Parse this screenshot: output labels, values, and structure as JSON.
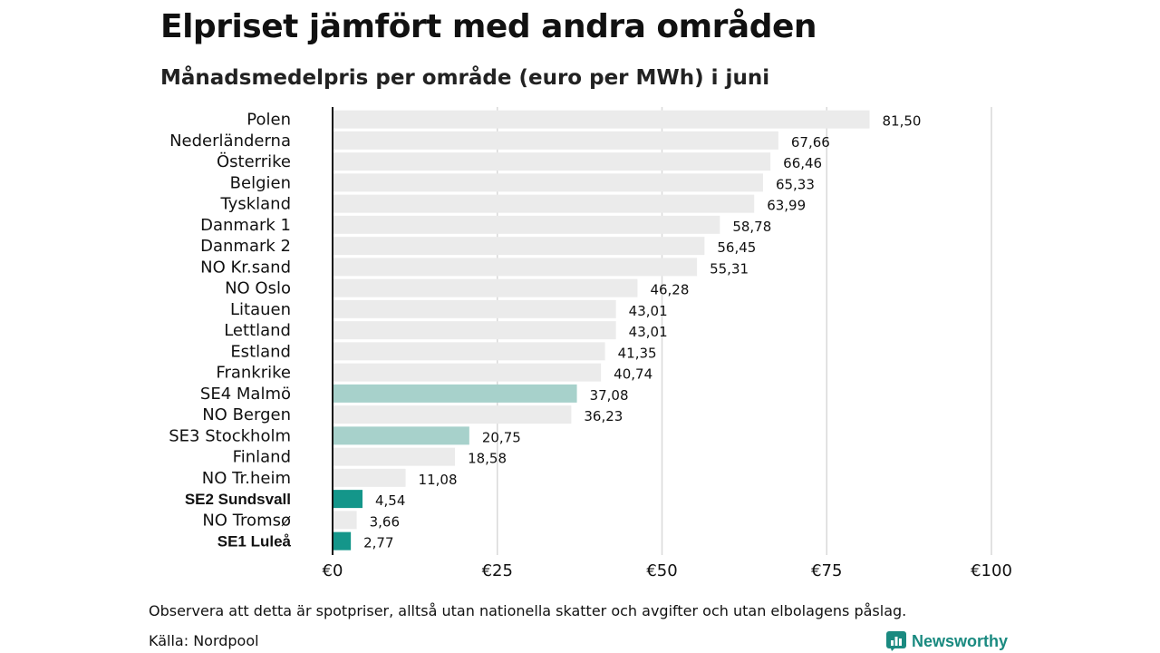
{
  "title": "Elpriset jämfört med andra områden",
  "subtitle": "Månadsmedelpris per område (euro per MWh) i juni",
  "note": "Observera att detta är spotpriser, alltså utan nationella skatter och avgifter och utan elbolagens påslag.",
  "source": "Källa: Nordpool",
  "brand": {
    "name": "Newsworthy",
    "icon": "newsworthy-logo-icon"
  },
  "colors": {
    "default_bar": "#ebebeb",
    "light_highlight": "#a7d1cb",
    "strong_highlight": "#14968a",
    "axis": "#111111",
    "grid": "#d9d9d9"
  },
  "chart_data": {
    "type": "bar",
    "orientation": "horizontal",
    "xlim": [
      0,
      100
    ],
    "xticks": [
      {
        "value": 0,
        "label": "€0"
      },
      {
        "value": 25,
        "label": "€25"
      },
      {
        "value": 50,
        "label": "€50"
      },
      {
        "value": 75,
        "label": "€75"
      },
      {
        "value": 100,
        "label": "€100"
      }
    ],
    "grid": true,
    "categories": [
      {
        "label": "Polen",
        "value": 81.5,
        "value_label": "81,50",
        "highlight": "none",
        "bold": false
      },
      {
        "label": "Nederländerna",
        "value": 67.66,
        "value_label": "67,66",
        "highlight": "none",
        "bold": false
      },
      {
        "label": "Österrike",
        "value": 66.46,
        "value_label": "66,46",
        "highlight": "none",
        "bold": false
      },
      {
        "label": "Belgien",
        "value": 65.33,
        "value_label": "65,33",
        "highlight": "none",
        "bold": false
      },
      {
        "label": "Tyskland",
        "value": 63.99,
        "value_label": "63,99",
        "highlight": "none",
        "bold": false
      },
      {
        "label": "Danmark  1",
        "value": 58.78,
        "value_label": "58,78",
        "highlight": "none",
        "bold": false
      },
      {
        "label": "Danmark  2",
        "value": 56.45,
        "value_label": "56,45",
        "highlight": "none",
        "bold": false
      },
      {
        "label": "NO Kr.sand",
        "value": 55.31,
        "value_label": "55,31",
        "highlight": "none",
        "bold": false
      },
      {
        "label": "NO Oslo",
        "value": 46.28,
        "value_label": "46,28",
        "highlight": "none",
        "bold": false
      },
      {
        "label": "Litauen",
        "value": 43.01,
        "value_label": "43,01",
        "highlight": "none",
        "bold": false
      },
      {
        "label": "Lettland",
        "value": 43.01,
        "value_label": "43,01",
        "highlight": "none",
        "bold": false
      },
      {
        "label": "Estland",
        "value": 41.35,
        "value_label": "41,35",
        "highlight": "none",
        "bold": false
      },
      {
        "label": "Frankrike",
        "value": 40.74,
        "value_label": "40,74",
        "highlight": "none",
        "bold": false
      },
      {
        "label": "SE4  Malmö",
        "value": 37.08,
        "value_label": "37,08",
        "highlight": "light",
        "bold": false
      },
      {
        "label": "NO Bergen",
        "value": 36.23,
        "value_label": "36,23",
        "highlight": "none",
        "bold": false
      },
      {
        "label": "SE3  Stockholm",
        "value": 20.75,
        "value_label": "20,75",
        "highlight": "light",
        "bold": false
      },
      {
        "label": "Finland",
        "value": 18.58,
        "value_label": "18,58",
        "highlight": "none",
        "bold": false
      },
      {
        "label": "NO Tr.heim",
        "value": 11.08,
        "value_label": "11,08",
        "highlight": "none",
        "bold": false
      },
      {
        "label": "SE2 Sundsvall",
        "value": 4.54,
        "value_label": "4,54",
        "highlight": "strong",
        "bold": true
      },
      {
        "label": "NO Tromsø",
        "value": 3.66,
        "value_label": "3,66",
        "highlight": "none",
        "bold": false
      },
      {
        "label": "SE1 Luleå",
        "value": 2.77,
        "value_label": "2,77",
        "highlight": "strong",
        "bold": true
      }
    ]
  }
}
